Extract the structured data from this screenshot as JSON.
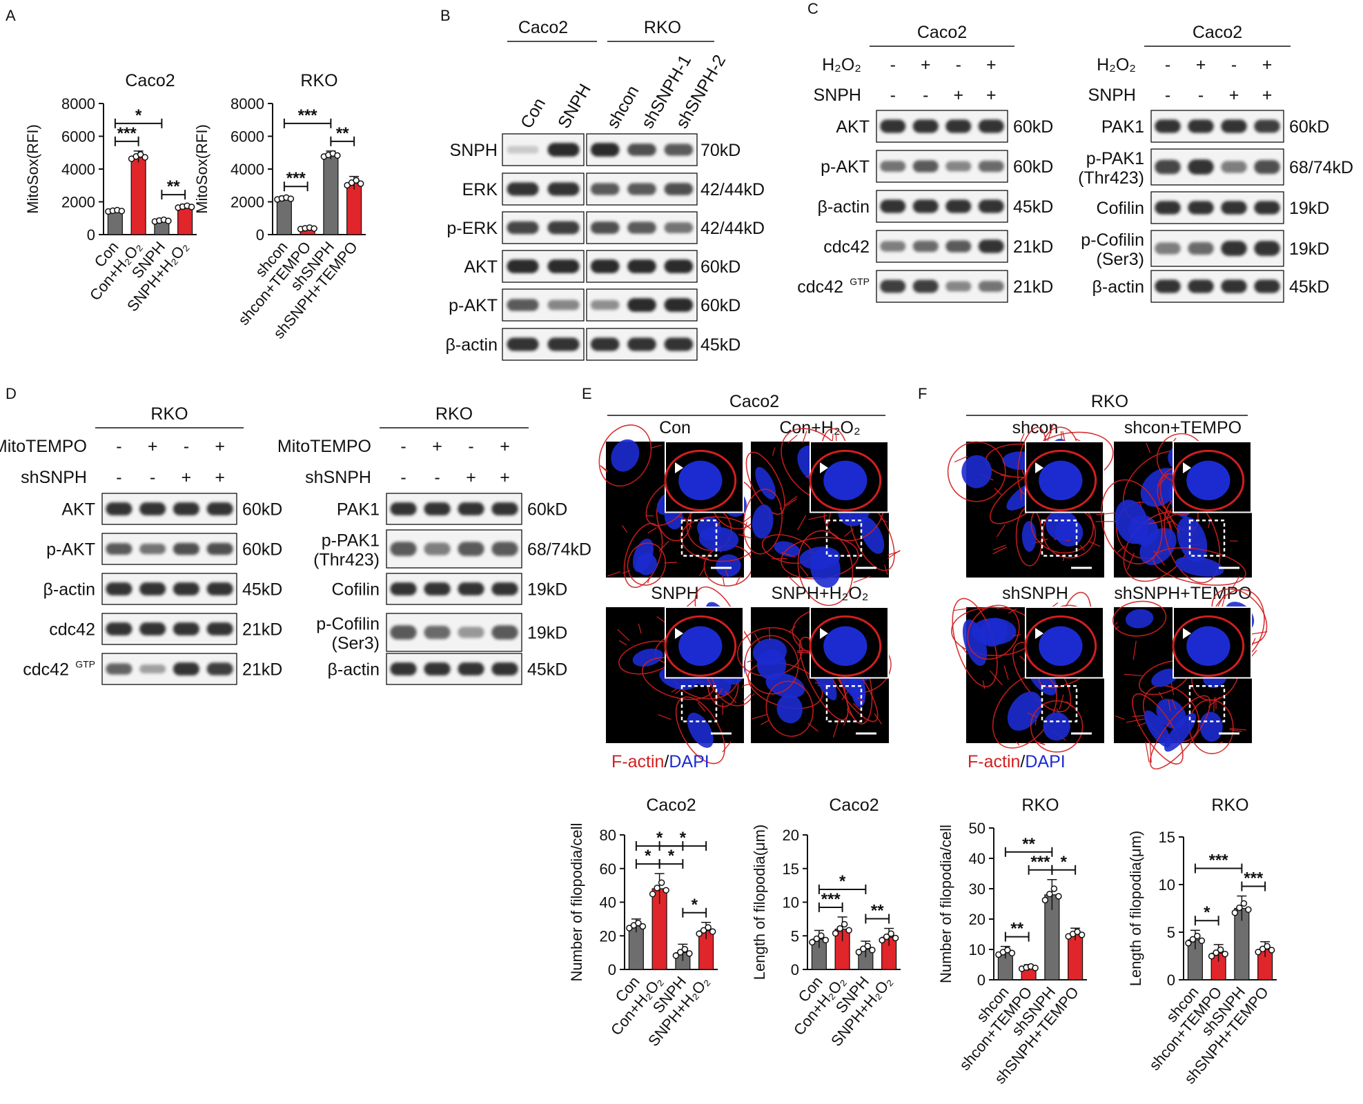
{
  "panel_labels": [
    "A",
    "B",
    "C",
    "D",
    "E",
    "F"
  ],
  "colors": {
    "grey": "#6e6e6e",
    "red": "#e0262b",
    "nucleus": "#1c2bd0",
    "actin": "#d21e1e",
    "band": "#1a1a1a"
  },
  "charts": [
    {
      "id": "a1",
      "title": "Caco2",
      "ylabel": "MitoSox(RFI)",
      "ylim": [
        0,
        8000
      ],
      "ticks": [
        0,
        2000,
        4000,
        6000,
        8000
      ],
      "categories": [
        "Con",
        "Con+H₂O₂",
        "SNPH",
        "SNPH+H₂O₂"
      ],
      "values": [
        1450,
        4750,
        850,
        1700
      ],
      "errors": [
        110,
        350,
        140,
        150
      ],
      "colors": [
        "grey",
        "red",
        "grey",
        "red"
      ],
      "sig": [
        {
          "a": 0,
          "b": 1,
          "label": "***"
        },
        {
          "a": 0,
          "b": 2,
          "label": "*"
        },
        {
          "a": 2,
          "b": 3,
          "label": "**"
        }
      ]
    },
    {
      "id": "a2",
      "title": "RKO",
      "ylabel": "MitoSox(RFI)",
      "ylim": [
        0,
        8000
      ],
      "ticks": [
        0,
        2000,
        4000,
        6000,
        8000
      ],
      "categories": [
        "shcon",
        "shcon+TEMPO",
        "shSNPH",
        "shSNPH+TEMPO"
      ],
      "values": [
        2200,
        380,
        4850,
        3150
      ],
      "errors": [
        150,
        120,
        250,
        400
      ],
      "colors": [
        "grey",
        "red",
        "grey",
        "red"
      ],
      "sig": [
        {
          "a": 0,
          "b": 1,
          "label": "***"
        },
        {
          "a": 0,
          "b": 2,
          "label": "***"
        },
        {
          "a": 2,
          "b": 3,
          "label": "**"
        }
      ]
    },
    {
      "id": "e1",
      "title": "Caco2",
      "ylabel": "Number of filopodia/cell",
      "ylim": [
        0,
        80
      ],
      "ticks": [
        0,
        20,
        40,
        60,
        80
      ],
      "categories": [
        "Con",
        "Con+H₂O₂",
        "SNPH",
        "SNPH+H₂O₂"
      ],
      "values": [
        26,
        48,
        10,
        23
      ],
      "errors": [
        4,
        9,
        5,
        5
      ],
      "colors": [
        "grey",
        "red",
        "grey",
        "red"
      ],
      "sig": [
        {
          "a": 0,
          "b": 1,
          "label": "*"
        },
        {
          "a": 0,
          "b": 2,
          "label": "*"
        },
        {
          "a": 1,
          "b": 2,
          "label": "*"
        },
        {
          "a": 1,
          "b": 3,
          "label": "*"
        },
        {
          "a": 2,
          "b": 3,
          "label": "*"
        }
      ]
    },
    {
      "id": "e2",
      "title": "Caco2",
      "ylabel": "Length of filopodia(μm)",
      "ylim": [
        0,
        20
      ],
      "ticks": [
        0,
        5,
        10,
        15,
        20
      ],
      "categories": [
        "Con",
        "Con+H₂O₂",
        "SNPH",
        "SNPH+H₂O₂"
      ],
      "values": [
        4.5,
        6.0,
        3.0,
        4.8
      ],
      "errors": [
        1.3,
        1.8,
        1.2,
        1.3
      ],
      "colors": [
        "grey",
        "red",
        "grey",
        "red"
      ],
      "sig": [
        {
          "a": 0,
          "b": 1,
          "label": "***"
        },
        {
          "a": 0,
          "b": 2,
          "label": "*"
        },
        {
          "a": 2,
          "b": 3,
          "label": "**"
        }
      ]
    },
    {
      "id": "f1",
      "title": "RKO",
      "ylabel": "Number of filopodia/cell",
      "ylim": [
        0,
        50
      ],
      "ticks": [
        0,
        10,
        20,
        30,
        40,
        50
      ],
      "categories": [
        "shcon",
        "shcon+TEMPO",
        "shSNPH",
        "shSNPH+TEMPO"
      ],
      "values": [
        9,
        4,
        28,
        15
      ],
      "errors": [
        2,
        1,
        5,
        2
      ],
      "colors": [
        "grey",
        "red",
        "grey",
        "red"
      ],
      "sig": [
        {
          "a": 0,
          "b": 1,
          "label": "**"
        },
        {
          "a": 0,
          "b": 2,
          "label": "**"
        },
        {
          "a": 1,
          "b": 2,
          "label": "***"
        },
        {
          "a": 2,
          "b": 3,
          "label": "*"
        }
      ]
    },
    {
      "id": "f2",
      "title": "RKO",
      "ylabel": "Length of filopodia(μm)",
      "ylim": [
        0,
        15
      ],
      "ticks": [
        0,
        5,
        10,
        15
      ],
      "categories": [
        "shcon",
        "shcon+TEMPO",
        "shSNPH",
        "shSNPH+TEMPO"
      ],
      "values": [
        4.2,
        2.8,
        7.5,
        3.2
      ],
      "errors": [
        1.0,
        0.9,
        1.3,
        0.8
      ],
      "colors": [
        "grey",
        "red",
        "grey",
        "red"
      ],
      "sig": [
        {
          "a": 0,
          "b": 1,
          "label": "*"
        },
        {
          "a": 0,
          "b": 2,
          "label": "***"
        },
        {
          "a": 2,
          "b": 3,
          "label": "***"
        }
      ]
    }
  ],
  "blots": {
    "b": {
      "groups": [
        "Caco2",
        "RKO"
      ],
      "lanes": [
        "Con",
        "SNPH",
        "shcon",
        "shSNPH-1",
        "shSNPH-2"
      ],
      "rows": [
        {
          "label": "SNPH",
          "mw": "70kD",
          "i": [
            0.08,
            0.95,
            0.95,
            0.75,
            0.7
          ]
        },
        {
          "label": "ERK",
          "mw": "42/44kD",
          "i": [
            0.9,
            0.9,
            0.7,
            0.7,
            0.75
          ]
        },
        {
          "label": "p-ERK",
          "mw": "42/44kD",
          "i": [
            0.8,
            0.85,
            0.75,
            0.7,
            0.55
          ]
        },
        {
          "label": "AKT",
          "mw": "60kD",
          "i": [
            0.95,
            0.95,
            0.95,
            0.95,
            0.95
          ]
        },
        {
          "label": "p-AKT",
          "mw": "60kD",
          "i": [
            0.7,
            0.45,
            0.4,
            0.95,
            0.95
          ]
        },
        {
          "label": "β-actin",
          "mw": "45kD",
          "i": [
            0.9,
            0.9,
            0.9,
            0.9,
            0.9
          ]
        }
      ]
    },
    "c_left": {
      "cell": "Caco2",
      "cond": [
        {
          "name": "H₂O₂",
          "signs": [
            "-",
            "+",
            "-",
            "+"
          ]
        },
        {
          "name": "SNPH",
          "signs": [
            "-",
            "-",
            "+",
            "+"
          ]
        }
      ],
      "rows": [
        {
          "label": "AKT",
          "mw": "60kD",
          "i": [
            0.9,
            0.9,
            0.9,
            0.9
          ]
        },
        {
          "label": "p-AKT",
          "mw": "60kD",
          "i": [
            0.55,
            0.7,
            0.45,
            0.6
          ]
        },
        {
          "label": "β-actin",
          "mw": "45kD",
          "i": [
            0.9,
            0.9,
            0.9,
            0.9
          ]
        },
        {
          "label": "cdc42",
          "mw": "21kD",
          "i": [
            0.5,
            0.6,
            0.7,
            0.9
          ]
        },
        {
          "label": "cdc42",
          "sup": "GTP",
          "mw": "21kD",
          "i": [
            0.85,
            0.85,
            0.45,
            0.55
          ]
        }
      ]
    },
    "c_right": {
      "cell": "Caco2",
      "cond": [
        {
          "name": "H₂O₂",
          "signs": [
            "-",
            "+",
            "-",
            "+"
          ]
        },
        {
          "name": "SNPH",
          "signs": [
            "-",
            "-",
            "+",
            "+"
          ]
        }
      ],
      "rows": [
        {
          "label": "PAK1",
          "mw": "60kD",
          "i": [
            0.9,
            0.9,
            0.9,
            0.85
          ]
        },
        {
          "label": "p-PAK1",
          "label2": "(Thr423)",
          "mw": "68/74kD",
          "i": [
            0.8,
            0.9,
            0.5,
            0.75
          ]
        },
        {
          "label": "Cofilin",
          "mw": "19kD",
          "i": [
            0.9,
            0.9,
            0.9,
            0.9
          ]
        },
        {
          "label": "p-Cofilin",
          "label2": "(Ser3)",
          "mw": "19kD",
          "i": [
            0.5,
            0.6,
            0.9,
            0.9
          ]
        },
        {
          "label": "β-actin",
          "mw": "45kD",
          "i": [
            0.9,
            0.9,
            0.9,
            0.9
          ]
        }
      ]
    },
    "d_left": {
      "cell": "RKO",
      "cond": [
        {
          "name": "MitoTEMPO",
          "signs": [
            "-",
            "+",
            "-",
            "+"
          ]
        },
        {
          "name": "shSNPH",
          "signs": [
            "-",
            "-",
            "+",
            "+"
          ]
        }
      ],
      "rows": [
        {
          "label": "AKT",
          "mw": "60kD",
          "i": [
            0.9,
            0.9,
            0.9,
            0.9
          ]
        },
        {
          "label": "p-AKT",
          "mw": "60kD",
          "i": [
            0.7,
            0.55,
            0.75,
            0.75
          ]
        },
        {
          "label": "β-actin",
          "mw": "45kD",
          "i": [
            0.9,
            0.9,
            0.9,
            0.9
          ]
        },
        {
          "label": "cdc42",
          "mw": "21kD",
          "i": [
            0.9,
            0.9,
            0.9,
            0.9
          ]
        },
        {
          "label": "cdc42",
          "sup": "GTP",
          "mw": "21kD",
          "i": [
            0.65,
            0.3,
            0.9,
            0.85
          ]
        }
      ]
    },
    "d_right": {
      "cell": "RKO",
      "cond": [
        {
          "name": "MitoTEMPO",
          "signs": [
            "-",
            "+",
            "-",
            "+"
          ]
        },
        {
          "name": "shSNPH",
          "signs": [
            "-",
            "-",
            "+",
            "+"
          ]
        }
      ],
      "rows": [
        {
          "label": "PAK1",
          "mw": "60kD",
          "i": [
            0.9,
            0.9,
            0.9,
            0.9
          ]
        },
        {
          "label": "p-PAK1",
          "label2": "(Thr423)",
          "mw": "68/74kD",
          "i": [
            0.7,
            0.5,
            0.7,
            0.7
          ]
        },
        {
          "label": "Cofilin",
          "mw": "19kD",
          "i": [
            0.9,
            0.9,
            0.9,
            0.9
          ]
        },
        {
          "label": "p-Cofilin",
          "label2": "(Ser3)",
          "mw": "19kD",
          "i": [
            0.7,
            0.6,
            0.35,
            0.7
          ]
        },
        {
          "label": "β-actin",
          "mw": "45kD",
          "i": [
            0.9,
            0.9,
            0.9,
            0.9
          ]
        }
      ]
    }
  },
  "micro": {
    "e": {
      "cell": "Caco2",
      "labels": [
        "Con",
        "Con+H₂O₂",
        "SNPH",
        "SNPH+H₂O₂"
      ]
    },
    "f": {
      "cell": "RKO",
      "labels": [
        "shcon",
        "shcon+TEMPO",
        "shSNPH",
        "shSNPH+TEMPO"
      ]
    },
    "legend": {
      "red": "F-actin",
      "sep": "/",
      "blue": "DAPI"
    }
  }
}
